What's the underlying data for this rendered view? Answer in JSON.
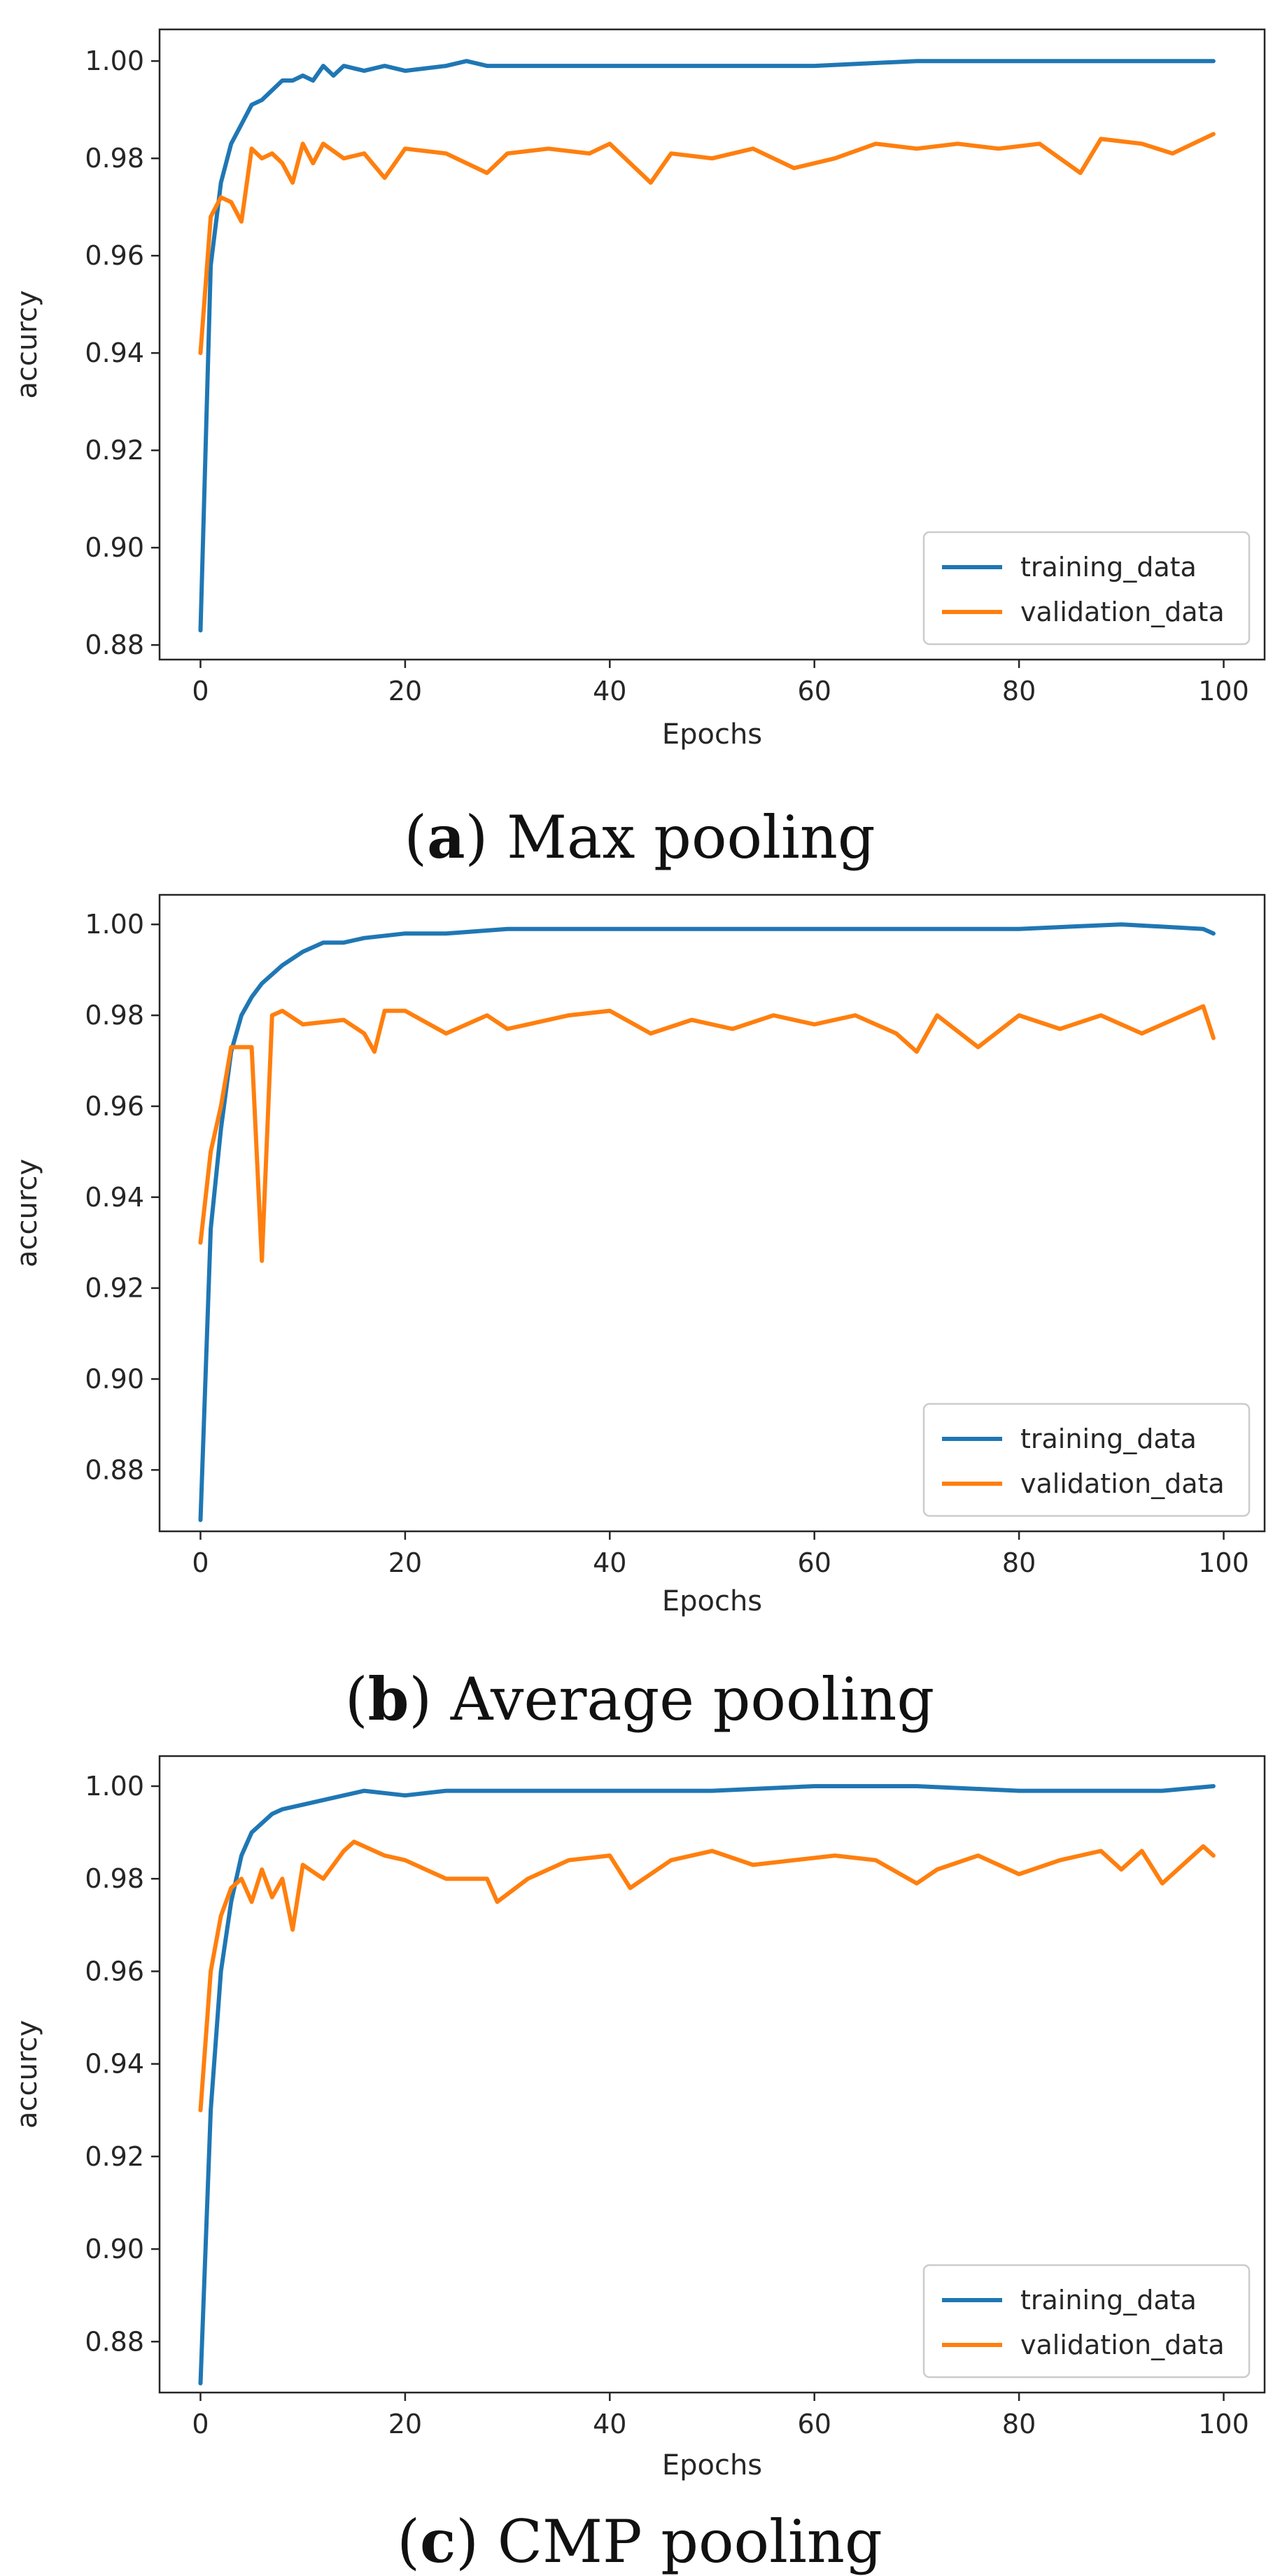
{
  "colors": {
    "training": "#1f77b4",
    "validation": "#ff7f0e",
    "axis": "#262626",
    "legend_border": "#cccccc"
  },
  "chart_data": [
    {
      "type": "line",
      "caption": {
        "open": "(",
        "letter": "a",
        "rest": ") Max pooling"
      },
      "xlabel": "Epochs",
      "ylabel": "accurcy",
      "xlim": [
        -4,
        104
      ],
      "ylim": [
        0.877,
        1.0065
      ],
      "xticks": [
        0,
        20,
        40,
        60,
        80,
        100
      ],
      "xtick_labels": [
        "0",
        "20",
        "40",
        "60",
        "80",
        "100"
      ],
      "yticks": [
        0.88,
        0.9,
        0.92,
        0.94,
        0.96,
        0.98,
        1.0
      ],
      "ytick_labels": [
        "0.88",
        "0.90",
        "0.92",
        "0.94",
        "0.96",
        "0.98",
        "1.00"
      ],
      "legend": {
        "position": "lower right",
        "entries": [
          "training_data",
          "validation_data"
        ]
      },
      "series": [
        {
          "name": "training_data",
          "x": [
            0,
            1,
            2,
            3,
            4,
            5,
            6,
            7,
            8,
            9,
            10,
            11,
            12,
            13,
            14,
            16,
            18,
            20,
            24,
            26,
            28,
            30,
            40,
            50,
            60,
            70,
            80,
            90,
            99
          ],
          "values": [
            0.883,
            0.958,
            0.975,
            0.983,
            0.987,
            0.991,
            0.992,
            0.994,
            0.996,
            0.996,
            0.997,
            0.996,
            0.999,
            0.997,
            0.999,
            0.998,
            0.999,
            0.998,
            0.999,
            1.0,
            0.999,
            0.999,
            0.999,
            0.999,
            0.999,
            1.0,
            1.0,
            1.0,
            1.0
          ]
        },
        {
          "name": "validation_data",
          "x": [
            0,
            1,
            2,
            3,
            4,
            5,
            6,
            7,
            8,
            9,
            10,
            11,
            12,
            14,
            16,
            18,
            20,
            24,
            28,
            30,
            34,
            38,
            40,
            44,
            46,
            50,
            54,
            58,
            62,
            66,
            70,
            74,
            78,
            82,
            86,
            88,
            92,
            95,
            99
          ],
          "values": [
            0.94,
            0.968,
            0.972,
            0.971,
            0.967,
            0.982,
            0.98,
            0.981,
            0.979,
            0.975,
            0.983,
            0.979,
            0.983,
            0.98,
            0.981,
            0.976,
            0.982,
            0.981,
            0.977,
            0.981,
            0.982,
            0.981,
            0.983,
            0.975,
            0.981,
            0.98,
            0.982,
            0.978,
            0.98,
            0.983,
            0.982,
            0.983,
            0.982,
            0.983,
            0.977,
            0.984,
            0.983,
            0.981,
            0.985
          ]
        }
      ]
    },
    {
      "type": "line",
      "caption": {
        "open": "(",
        "letter": "b",
        "rest": ") Average pooling"
      },
      "xlabel": "Epochs",
      "ylabel": "accurcy",
      "xlim": [
        -4,
        104
      ],
      "ylim": [
        0.8665,
        1.0065
      ],
      "xticks": [
        0,
        20,
        40,
        60,
        80,
        100
      ],
      "xtick_labels": [
        "0",
        "20",
        "40",
        "60",
        "80",
        "100"
      ],
      "yticks": [
        0.88,
        0.9,
        0.92,
        0.94,
        0.96,
        0.98,
        1.0
      ],
      "ytick_labels": [
        "0.88",
        "0.90",
        "0.92",
        "0.94",
        "0.96",
        "0.98",
        "1.00"
      ],
      "legend": {
        "position": "lower right",
        "entries": [
          "training_data",
          "validation_data"
        ]
      },
      "series": [
        {
          "name": "training_data",
          "x": [
            0,
            1,
            2,
            3,
            4,
            5,
            6,
            7,
            8,
            10,
            12,
            14,
            16,
            20,
            24,
            30,
            40,
            50,
            60,
            70,
            80,
            90,
            98,
            99
          ],
          "values": [
            0.869,
            0.933,
            0.955,
            0.972,
            0.98,
            0.984,
            0.987,
            0.989,
            0.991,
            0.994,
            0.996,
            0.996,
            0.997,
            0.998,
            0.998,
            0.999,
            0.999,
            0.999,
            0.999,
            0.999,
            0.999,
            1.0,
            0.999,
            0.998
          ]
        },
        {
          "name": "validation_data",
          "x": [
            0,
            1,
            2,
            3,
            4,
            5,
            6,
            7,
            8,
            10,
            14,
            16,
            17,
            18,
            20,
            24,
            28,
            30,
            36,
            40,
            44,
            48,
            52,
            56,
            60,
            64,
            68,
            70,
            72,
            76,
            80,
            84,
            88,
            92,
            96,
            98,
            99
          ],
          "values": [
            0.93,
            0.95,
            0.96,
            0.973,
            0.973,
            0.973,
            0.926,
            0.98,
            0.981,
            0.978,
            0.979,
            0.976,
            0.972,
            0.981,
            0.981,
            0.976,
            0.98,
            0.977,
            0.98,
            0.981,
            0.976,
            0.979,
            0.977,
            0.98,
            0.978,
            0.98,
            0.976,
            0.972,
            0.98,
            0.973,
            0.98,
            0.977,
            0.98,
            0.976,
            0.98,
            0.982,
            0.975
          ]
        }
      ]
    },
    {
      "type": "line",
      "caption": {
        "open": "(",
        "letter": "c",
        "rest": ") CMP pooling"
      },
      "xlabel": "Epochs",
      "ylabel": "accurcy",
      "xlim": [
        -4,
        104
      ],
      "ylim": [
        0.869,
        1.0065
      ],
      "xticks": [
        0,
        20,
        40,
        60,
        80,
        100
      ],
      "xtick_labels": [
        "0",
        "20",
        "40",
        "60",
        "80",
        "100"
      ],
      "yticks": [
        0.88,
        0.9,
        0.92,
        0.94,
        0.96,
        0.98,
        1.0
      ],
      "ytick_labels": [
        "0.88",
        "0.90",
        "0.92",
        "0.94",
        "0.96",
        "0.98",
        "1.00"
      ],
      "legend": {
        "position": "lower right",
        "entries": [
          "training_data",
          "validation_data"
        ]
      },
      "series": [
        {
          "name": "training_data",
          "x": [
            0,
            1,
            2,
            3,
            4,
            5,
            6,
            7,
            8,
            10,
            12,
            14,
            16,
            20,
            24,
            30,
            40,
            50,
            60,
            70,
            80,
            90,
            94,
            99
          ],
          "values": [
            0.871,
            0.93,
            0.96,
            0.975,
            0.985,
            0.99,
            0.992,
            0.994,
            0.995,
            0.996,
            0.997,
            0.998,
            0.999,
            0.998,
            0.999,
            0.999,
            0.999,
            0.999,
            1.0,
            1.0,
            0.999,
            0.999,
            0.999,
            1.0
          ]
        },
        {
          "name": "validation_data",
          "x": [
            0,
            1,
            2,
            3,
            4,
            5,
            6,
            7,
            8,
            9,
            10,
            12,
            14,
            15,
            18,
            20,
            24,
            28,
            29,
            32,
            36,
            40,
            42,
            46,
            50,
            54,
            58,
            62,
            66,
            70,
            72,
            76,
            80,
            84,
            88,
            90,
            92,
            94,
            98,
            99
          ],
          "values": [
            0.93,
            0.96,
            0.972,
            0.978,
            0.98,
            0.975,
            0.982,
            0.976,
            0.98,
            0.969,
            0.983,
            0.98,
            0.986,
            0.988,
            0.985,
            0.984,
            0.98,
            0.98,
            0.975,
            0.98,
            0.984,
            0.985,
            0.978,
            0.984,
            0.986,
            0.983,
            0.984,
            0.985,
            0.984,
            0.979,
            0.982,
            0.985,
            0.981,
            0.984,
            0.986,
            0.982,
            0.986,
            0.979,
            0.987,
            0.985
          ]
        }
      ]
    }
  ]
}
